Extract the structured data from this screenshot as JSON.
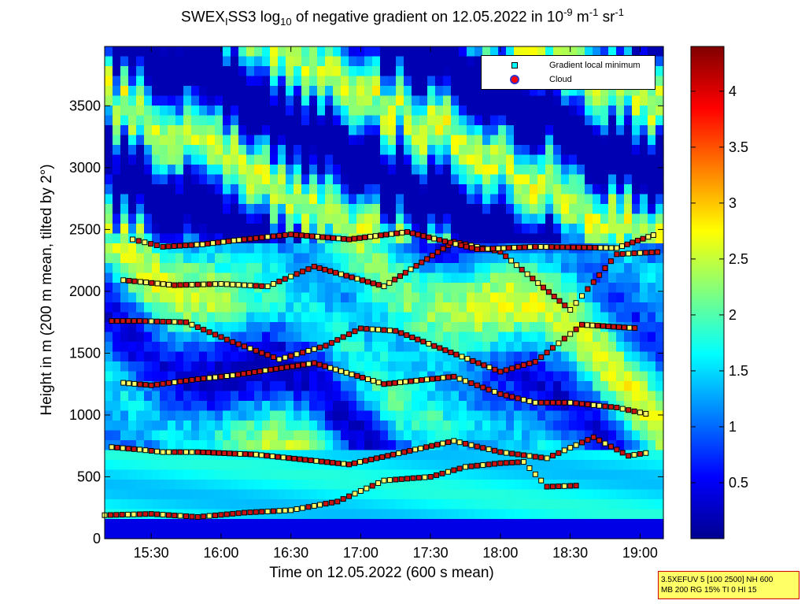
{
  "title": {
    "prefix": "SWEX",
    "sub1": "I",
    "mid1": "SS3 log",
    "sub2": "10",
    "mid2": " of negative gradient on 12.05.2022 in 10",
    "sup1": "-9",
    "mid3": " m",
    "sup2": "-1",
    "mid4": " sr",
    "sup3": "-1"
  },
  "ylabel": "Height in m (200 m mean, tilted by 2°)",
  "xlabel": "Time on 12.05.2022 (600 s mean)",
  "legend": {
    "gradient_label": "Gradient local minimum",
    "cloud_label": "Cloud"
  },
  "infobox": {
    "line1": "3.5XEFUV 5 [100 2500] NH 600",
    "line2": "MB 200 RG 15% TI 0 HI 15"
  },
  "chart_data": {
    "type": "heatmap",
    "x": {
      "tick_labels": [
        "15:30",
        "16:00",
        "16:30",
        "17:00",
        "17:30",
        "18:00",
        "18:30",
        "19:00"
      ],
      "tick_values_min": [
        930,
        960,
        990,
        1020,
        1050,
        1080,
        1110,
        1140
      ],
      "range_min": [
        910,
        1150
      ]
    },
    "y": {
      "tick_labels": [
        "0",
        "500",
        "1000",
        "1500",
        "2000",
        "2500",
        "3000",
        "3500"
      ],
      "tick_values": [
        0,
        500,
        1000,
        1500,
        2000,
        2500,
        3000,
        3500
      ],
      "range": [
        0,
        3980
      ]
    },
    "colorbar": {
      "range": [
        0,
        4.4
      ],
      "tick_labels": [
        "0.5",
        "1",
        "1.5",
        "2",
        "2.5",
        "3",
        "3.5",
        "4"
      ],
      "tick_values": [
        0.5,
        1,
        1.5,
        2,
        2.5,
        3,
        3.5,
        4
      ],
      "colormap": "jet"
    },
    "series": [
      {
        "name": "Gradient local minimum",
        "marker": "square",
        "color": "#00ffff",
        "layers": [
          {
            "points": [
              [
                910,
                190
              ],
              [
                930,
                200
              ],
              [
                950,
                175
              ],
              [
                970,
                210
              ],
              [
                990,
                230
              ],
              [
                1010,
                300
              ],
              [
                1030,
                470
              ],
              [
                1050,
                500
              ],
              [
                1065,
                580
              ],
              [
                1080,
                610
              ],
              [
                1090,
                620
              ],
              [
                1100,
                420
              ],
              [
                1115,
                430
              ]
            ]
          },
          {
            "points": [
              [
                913,
                740
              ],
              [
                925,
                720
              ],
              [
                935,
                700
              ],
              [
                950,
                700
              ],
              [
                975,
                680
              ],
              [
                1015,
                600
              ],
              [
                1060,
                790
              ],
              [
                1080,
                700
              ],
              [
                1100,
                650
              ],
              [
                1120,
                820
              ],
              [
                1135,
                670
              ],
              [
                1145,
                700
              ]
            ]
          },
          {
            "points": [
              [
                918,
                1260
              ],
              [
                930,
                1240
              ],
              [
                950,
                1290
              ],
              [
                965,
                1320
              ],
              [
                1000,
                1420
              ],
              [
                1030,
                1250
              ],
              [
                1060,
                1310
              ],
              [
                1080,
                1170
              ],
              [
                1095,
                1100
              ],
              [
                1110,
                1100
              ],
              [
                1130,
                1060
              ],
              [
                1145,
                1000
              ]
            ]
          },
          {
            "points": [
              [
                913,
                1760
              ],
              [
                925,
                1760
              ],
              [
                945,
                1750
              ],
              [
                965,
                1590
              ],
              [
                985,
                1450
              ],
              [
                1005,
                1560
              ],
              [
                1020,
                1700
              ],
              [
                1035,
                1680
              ],
              [
                1080,
                1350
              ],
              [
                1095,
                1430
              ],
              [
                1115,
                1730
              ],
              [
                1140,
                1700
              ]
            ]
          },
          {
            "points": [
              [
                918,
                2090
              ],
              [
                940,
                2050
              ],
              [
                960,
                2060
              ],
              [
                980,
                2040
              ],
              [
                1000,
                2200
              ],
              [
                1030,
                2040
              ],
              [
                1060,
                2400
              ],
              [
                1080,
                2320
              ],
              [
                1110,
                1850
              ],
              [
                1130,
                2300
              ],
              [
                1150,
                2320
              ]
            ]
          },
          {
            "points": [
              [
                922,
                2420
              ],
              [
                935,
                2360
              ],
              [
                952,
                2380
              ],
              [
                970,
                2420
              ],
              [
                990,
                2460
              ],
              [
                1015,
                2420
              ],
              [
                1040,
                2480
              ],
              [
                1070,
                2340
              ],
              [
                1095,
                2360
              ],
              [
                1130,
                2350
              ],
              [
                1148,
                2470
              ]
            ]
          }
        ]
      },
      {
        "name": "Cloud",
        "marker": "circle",
        "color": "#ff0000",
        "points": []
      }
    ]
  }
}
